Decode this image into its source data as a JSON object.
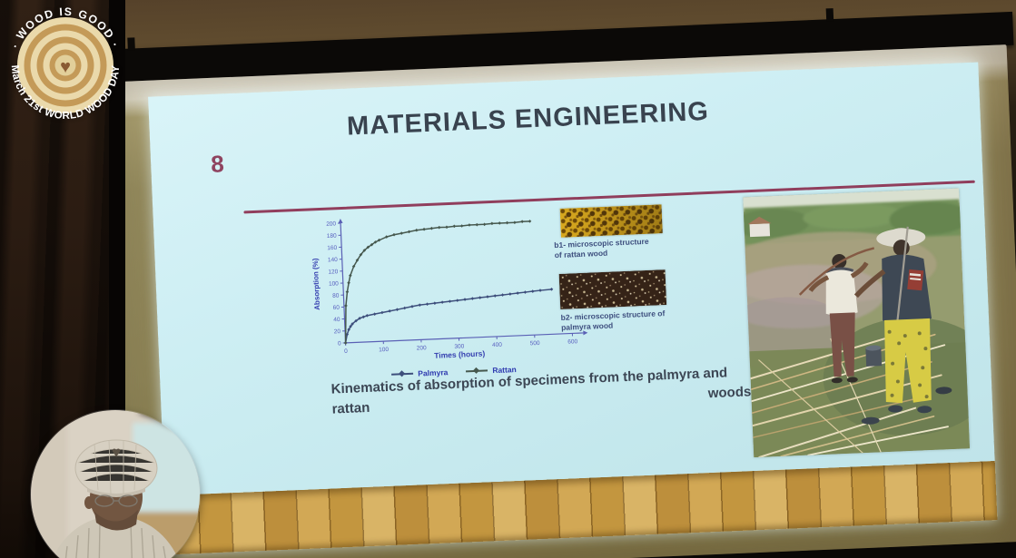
{
  "logo": {
    "arc_top": "· WOOD IS GOOD ·",
    "arc_bottom": "March 21st WORLD WOOD DAY"
  },
  "slide": {
    "number": "8",
    "title": "MATERIALS ENGINEERING",
    "accent_color": "#8b2f4f",
    "title_color": "#39434f",
    "background_color": "#cdeef3",
    "figure_captions": {
      "b1_line1": "b1- microscopic structure",
      "b1_line2": "of rattan wood",
      "b2_line1": "b2- microscopic structure of",
      "b2_line2": "palmyra wood"
    },
    "caption": {
      "line1": "Kinematics of absorption of specimens from the palmyra and",
      "line2_left": "rattan",
      "line2_right": "woods"
    }
  },
  "chart_data": {
    "type": "line",
    "title": "",
    "xlabel": "Times (hours)",
    "ylabel": "Absorption (%)",
    "xlim": [
      0,
      600
    ],
    "ylim": [
      0,
      200
    ],
    "xticks": [
      0,
      100,
      200,
      300,
      400,
      500,
      600
    ],
    "yticks": [
      0,
      20,
      40,
      60,
      80,
      100,
      120,
      140,
      160,
      180,
      200
    ],
    "grid": false,
    "legend_position": "bottom",
    "axis_color": "#5a60b5",
    "tick_label_color": "#5a62c0",
    "axis_label_color": "#3640b0",
    "series": [
      {
        "name": "Palmyra",
        "color": "#3e4f7c",
        "points": [
          [
            0,
            0
          ],
          [
            5,
            14
          ],
          [
            10,
            22
          ],
          [
            15,
            27
          ],
          [
            20,
            31
          ],
          [
            30,
            36
          ],
          [
            40,
            40
          ],
          [
            50,
            42
          ],
          [
            60,
            44
          ],
          [
            80,
            46
          ],
          [
            100,
            48
          ],
          [
            120,
            50
          ],
          [
            140,
            52
          ],
          [
            160,
            54
          ],
          [
            180,
            56
          ],
          [
            200,
            58
          ],
          [
            220,
            59
          ],
          [
            240,
            60
          ],
          [
            260,
            61
          ],
          [
            280,
            62
          ],
          [
            300,
            63
          ],
          [
            320,
            64
          ],
          [
            340,
            65
          ],
          [
            360,
            66
          ],
          [
            380,
            67
          ],
          [
            400,
            68
          ],
          [
            420,
            69
          ],
          [
            440,
            70
          ],
          [
            460,
            71
          ],
          [
            480,
            72
          ],
          [
            500,
            73
          ],
          [
            520,
            74
          ],
          [
            550,
            75
          ]
        ]
      },
      {
        "name": "Rattan",
        "color": "#46584e",
        "points": [
          [
            0,
            0
          ],
          [
            5,
            62
          ],
          [
            10,
            85
          ],
          [
            15,
            100
          ],
          [
            20,
            112
          ],
          [
            30,
            127
          ],
          [
            40,
            137
          ],
          [
            50,
            146
          ],
          [
            60,
            153
          ],
          [
            70,
            158
          ],
          [
            80,
            162
          ],
          [
            90,
            166
          ],
          [
            100,
            169
          ],
          [
            120,
            174
          ],
          [
            140,
            177
          ],
          [
            160,
            179
          ],
          [
            180,
            181
          ],
          [
            200,
            183
          ],
          [
            220,
            184
          ],
          [
            240,
            185
          ],
          [
            260,
            186
          ],
          [
            280,
            186
          ],
          [
            300,
            187
          ],
          [
            320,
            187
          ],
          [
            340,
            188
          ],
          [
            360,
            188
          ],
          [
            380,
            188
          ],
          [
            400,
            189
          ],
          [
            420,
            189
          ],
          [
            440,
            189
          ],
          [
            460,
            189
          ],
          [
            480,
            190
          ],
          [
            500,
            190
          ]
        ]
      }
    ]
  }
}
